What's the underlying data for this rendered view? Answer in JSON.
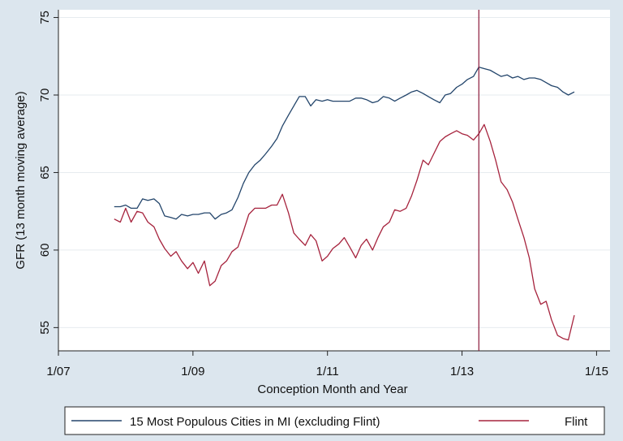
{
  "chart_data": {
    "type": "line",
    "title": "",
    "xlabel": "Conception Month and Year",
    "ylabel": "GFR (13 month moving average)",
    "xlim": [
      2007.0,
      2015.2
    ],
    "ylim": [
      53.5,
      75.5
    ],
    "x_ticks": [
      2007,
      2009,
      2011,
      2013,
      2015
    ],
    "x_tick_labels": [
      "1/07",
      "1/09",
      "1/11",
      "1/13",
      "1/15"
    ],
    "y_ticks": [
      55,
      60,
      65,
      70,
      75
    ],
    "y_tick_labels": [
      "55",
      "60",
      "65",
      "70",
      "75"
    ],
    "grid": true,
    "legend_position": "bottom",
    "vertical_line_x": 2013.25,
    "colors": {
      "background": "#dce6ee",
      "plot_area": "#ffffff",
      "grid": "#e6ebef",
      "reference_line": "#8b1a3a"
    },
    "series": [
      {
        "name": "15 Most Populous Cities in MI (excluding Flint)",
        "color": "#23456b",
        "points": [
          [
            2007.83,
            62.8
          ],
          [
            2007.92,
            62.8
          ],
          [
            2008.0,
            62.9
          ],
          [
            2008.08,
            62.7
          ],
          [
            2008.17,
            62.7
          ],
          [
            2008.25,
            63.3
          ],
          [
            2008.33,
            63.2
          ],
          [
            2008.42,
            63.3
          ],
          [
            2008.5,
            63.0
          ],
          [
            2008.58,
            62.2
          ],
          [
            2008.67,
            62.1
          ],
          [
            2008.75,
            62.0
          ],
          [
            2008.83,
            62.3
          ],
          [
            2008.92,
            62.2
          ],
          [
            2009.0,
            62.3
          ],
          [
            2009.08,
            62.3
          ],
          [
            2009.17,
            62.4
          ],
          [
            2009.25,
            62.4
          ],
          [
            2009.33,
            62.0
          ],
          [
            2009.42,
            62.3
          ],
          [
            2009.5,
            62.4
          ],
          [
            2009.58,
            62.6
          ],
          [
            2009.67,
            63.4
          ],
          [
            2009.75,
            64.3
          ],
          [
            2009.83,
            65.0
          ],
          [
            2009.92,
            65.5
          ],
          [
            2010.0,
            65.8
          ],
          [
            2010.08,
            66.2
          ],
          [
            2010.17,
            66.7
          ],
          [
            2010.25,
            67.2
          ],
          [
            2010.33,
            68.0
          ],
          [
            2010.42,
            68.7
          ],
          [
            2010.5,
            69.3
          ],
          [
            2010.58,
            69.9
          ],
          [
            2010.67,
            69.9
          ],
          [
            2010.75,
            69.3
          ],
          [
            2010.83,
            69.7
          ],
          [
            2010.92,
            69.6
          ],
          [
            2011.0,
            69.7
          ],
          [
            2011.08,
            69.6
          ],
          [
            2011.17,
            69.6
          ],
          [
            2011.25,
            69.6
          ],
          [
            2011.33,
            69.6
          ],
          [
            2011.42,
            69.8
          ],
          [
            2011.5,
            69.8
          ],
          [
            2011.58,
            69.7
          ],
          [
            2011.67,
            69.5
          ],
          [
            2011.75,
            69.6
          ],
          [
            2011.83,
            69.9
          ],
          [
            2011.92,
            69.8
          ],
          [
            2012.0,
            69.6
          ],
          [
            2012.08,
            69.8
          ],
          [
            2012.17,
            70.0
          ],
          [
            2012.25,
            70.2
          ],
          [
            2012.33,
            70.3
          ],
          [
            2012.42,
            70.1
          ],
          [
            2012.5,
            69.9
          ],
          [
            2012.58,
            69.7
          ],
          [
            2012.67,
            69.5
          ],
          [
            2012.75,
            70.0
          ],
          [
            2012.83,
            70.1
          ],
          [
            2012.92,
            70.5
          ],
          [
            2013.0,
            70.7
          ],
          [
            2013.08,
            71.0
          ],
          [
            2013.17,
            71.2
          ],
          [
            2013.25,
            71.8
          ],
          [
            2013.33,
            71.7
          ],
          [
            2013.42,
            71.6
          ],
          [
            2013.5,
            71.4
          ],
          [
            2013.58,
            71.2
          ],
          [
            2013.67,
            71.3
          ],
          [
            2013.75,
            71.1
          ],
          [
            2013.83,
            71.2
          ],
          [
            2013.92,
            71.0
          ],
          [
            2014.0,
            71.1
          ],
          [
            2014.08,
            71.1
          ],
          [
            2014.17,
            71.0
          ],
          [
            2014.25,
            70.8
          ],
          [
            2014.33,
            70.6
          ],
          [
            2014.42,
            70.5
          ],
          [
            2014.5,
            70.2
          ],
          [
            2014.58,
            70.0
          ],
          [
            2014.67,
            70.2
          ]
        ]
      },
      {
        "name": "Flint",
        "color": "#a6233d",
        "points": [
          [
            2007.83,
            62.0
          ],
          [
            2007.92,
            61.8
          ],
          [
            2008.0,
            62.7
          ],
          [
            2008.08,
            61.8
          ],
          [
            2008.17,
            62.5
          ],
          [
            2008.25,
            62.4
          ],
          [
            2008.33,
            61.8
          ],
          [
            2008.42,
            61.5
          ],
          [
            2008.5,
            60.7
          ],
          [
            2008.58,
            60.1
          ],
          [
            2008.67,
            59.6
          ],
          [
            2008.75,
            59.9
          ],
          [
            2008.83,
            59.3
          ],
          [
            2008.92,
            58.8
          ],
          [
            2009.0,
            59.2
          ],
          [
            2009.08,
            58.5
          ],
          [
            2009.17,
            59.3
          ],
          [
            2009.25,
            57.7
          ],
          [
            2009.33,
            58.0
          ],
          [
            2009.42,
            59.0
          ],
          [
            2009.5,
            59.3
          ],
          [
            2009.58,
            59.9
          ],
          [
            2009.67,
            60.2
          ],
          [
            2009.75,
            61.2
          ],
          [
            2009.83,
            62.3
          ],
          [
            2009.92,
            62.7
          ],
          [
            2010.0,
            62.7
          ],
          [
            2010.08,
            62.7
          ],
          [
            2010.17,
            62.9
          ],
          [
            2010.25,
            62.9
          ],
          [
            2010.33,
            63.6
          ],
          [
            2010.42,
            62.4
          ],
          [
            2010.5,
            61.1
          ],
          [
            2010.58,
            60.7
          ],
          [
            2010.67,
            60.3
          ],
          [
            2010.75,
            61.0
          ],
          [
            2010.83,
            60.6
          ],
          [
            2010.92,
            59.3
          ],
          [
            2011.0,
            59.6
          ],
          [
            2011.08,
            60.1
          ],
          [
            2011.17,
            60.4
          ],
          [
            2011.25,
            60.8
          ],
          [
            2011.33,
            60.2
          ],
          [
            2011.42,
            59.5
          ],
          [
            2011.5,
            60.3
          ],
          [
            2011.58,
            60.7
          ],
          [
            2011.67,
            60.0
          ],
          [
            2011.75,
            60.8
          ],
          [
            2011.83,
            61.5
          ],
          [
            2011.92,
            61.8
          ],
          [
            2012.0,
            62.6
          ],
          [
            2012.08,
            62.5
          ],
          [
            2012.17,
            62.7
          ],
          [
            2012.25,
            63.5
          ],
          [
            2012.33,
            64.5
          ],
          [
            2012.42,
            65.8
          ],
          [
            2012.5,
            65.5
          ],
          [
            2012.58,
            66.2
          ],
          [
            2012.67,
            67.0
          ],
          [
            2012.75,
            67.3
          ],
          [
            2012.83,
            67.5
          ],
          [
            2012.92,
            67.7
          ],
          [
            2013.0,
            67.5
          ],
          [
            2013.08,
            67.4
          ],
          [
            2013.17,
            67.1
          ],
          [
            2013.25,
            67.5
          ],
          [
            2013.33,
            68.1
          ],
          [
            2013.42,
            67.0
          ],
          [
            2013.5,
            65.8
          ],
          [
            2013.58,
            64.4
          ],
          [
            2013.67,
            63.9
          ],
          [
            2013.75,
            63.1
          ],
          [
            2013.83,
            62.0
          ],
          [
            2013.92,
            60.8
          ],
          [
            2014.0,
            59.5
          ],
          [
            2014.08,
            57.5
          ],
          [
            2014.17,
            56.5
          ],
          [
            2014.25,
            56.7
          ],
          [
            2014.33,
            55.5
          ],
          [
            2014.42,
            54.5
          ],
          [
            2014.5,
            54.3
          ],
          [
            2014.58,
            54.2
          ],
          [
            2014.67,
            55.8
          ]
        ]
      }
    ]
  }
}
